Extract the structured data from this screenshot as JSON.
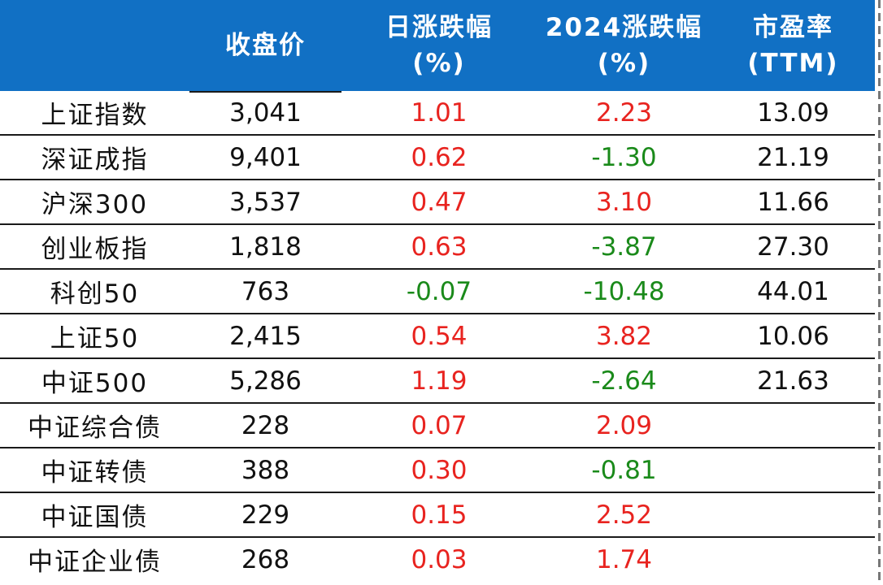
{
  "header": {
    "col1": [
      "收盘价"
    ],
    "col2": [
      "日涨跌幅",
      "(%)"
    ],
    "col3": [
      "2024涨跌幅",
      "(%)"
    ],
    "col4": [
      "市盈率",
      "(TTM)"
    ]
  },
  "rows": [
    {
      "name": "上证指数",
      "close": "3,041",
      "daily": "1.01",
      "ytd": "2.23",
      "pe": "13.09"
    },
    {
      "name": "深证成指",
      "close": "9,401",
      "daily": "0.62",
      "ytd": "-1.30",
      "pe": "21.19"
    },
    {
      "name": "沪深300",
      "close": "3,537",
      "daily": "0.47",
      "ytd": "3.10",
      "pe": "11.66"
    },
    {
      "name": "创业板指",
      "close": "1,818",
      "daily": "0.63",
      "ytd": "-3.87",
      "pe": "27.30"
    },
    {
      "name": "科创50",
      "close": "763",
      "daily": "-0.07",
      "ytd": "-10.48",
      "pe": "44.01"
    },
    {
      "name": "上证50",
      "close": "2,415",
      "daily": "0.54",
      "ytd": "3.82",
      "pe": "10.06"
    },
    {
      "name": "中证500",
      "close": "5,286",
      "daily": "1.19",
      "ytd": "-2.64",
      "pe": "21.63"
    },
    {
      "name": "中证综合债",
      "close": "228",
      "daily": "0.07",
      "ytd": "2.09",
      "pe": ""
    },
    {
      "name": "中证转债",
      "close": "388",
      "daily": "0.30",
      "ytd": "-0.81",
      "pe": ""
    },
    {
      "name": "中证国债",
      "close": "229",
      "daily": "0.15",
      "ytd": "2.52",
      "pe": ""
    },
    {
      "name": "中证企业债",
      "close": "268",
      "daily": "0.03",
      "ytd": "1.74",
      "pe": ""
    }
  ],
  "colors": {
    "header_bg": "#1170c4",
    "positive": "#e8231f",
    "negative": "#1a8a1a"
  }
}
